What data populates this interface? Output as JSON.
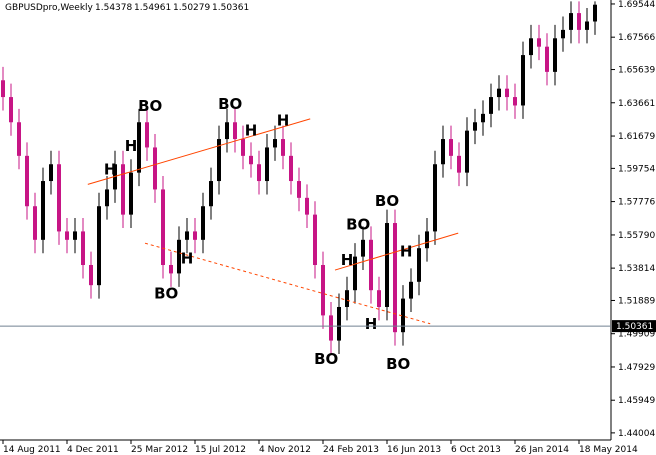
{
  "chart_data": {
    "type": "candlestick",
    "title": "GBPUSDpro,Weekly",
    "header_values": [
      1.54378,
      1.54961,
      1.50279,
      1.50361
    ],
    "categories": [
      "14 Aug 2011",
      null,
      null,
      null,
      null,
      null,
      null,
      null,
      "4 Dec 2011",
      null,
      null,
      null,
      null,
      null,
      null,
      null,
      "25 Mar 2012",
      null,
      null,
      null,
      null,
      null,
      null,
      null,
      "15 Jul 2012",
      null,
      null,
      null,
      null,
      null,
      null,
      null,
      "4 Nov 2012",
      null,
      null,
      null,
      null,
      null,
      null,
      null,
      "24 Feb 2013",
      null,
      null,
      null,
      null,
      null,
      null,
      null,
      "16 Jun 2013",
      null,
      null,
      null,
      null,
      null,
      null,
      null,
      "6 Oct 2013",
      null,
      null,
      null,
      null,
      null,
      null,
      null,
      "26 Jan 2014",
      null,
      null,
      null,
      null,
      null,
      null,
      null,
      "18 May 2014",
      null,
      null
    ],
    "open": [
      1.65,
      1.64,
      1.625,
      1.605,
      1.575,
      1.555,
      1.59,
      1.6,
      1.56,
      1.555,
      1.56,
      1.54,
      1.528,
      1.575,
      1.585,
      1.6,
      1.57,
      1.595,
      1.625,
      1.61,
      1.585,
      1.54,
      1.535,
      1.555,
      1.56,
      1.555,
      1.575,
      1.59,
      1.615,
      1.625,
      1.615,
      1.605,
      1.6,
      1.59,
      1.61,
      1.615,
      1.605,
      1.59,
      1.58,
      1.57,
      1.54,
      1.51,
      1.495,
      1.515,
      1.525,
      1.545,
      1.555,
      1.525,
      1.515,
      1.565,
      1.5,
      1.52,
      1.53,
      1.55,
      1.56,
      1.6,
      1.615,
      1.605,
      1.595,
      1.62,
      1.625,
      1.63,
      1.64,
      1.645,
      1.64,
      1.635,
      1.665,
      1.675,
      1.67,
      1.655,
      1.675,
      1.68,
      1.69,
      1.68,
      1.685
    ],
    "high": [
      1.658,
      1.648,
      1.633,
      1.613,
      1.583,
      1.598,
      1.608,
      1.608,
      1.568,
      1.568,
      1.568,
      1.548,
      1.583,
      1.593,
      1.608,
      1.608,
      1.603,
      1.633,
      1.633,
      1.618,
      1.593,
      1.548,
      1.563,
      1.568,
      1.568,
      1.583,
      1.598,
      1.623,
      1.633,
      1.633,
      1.623,
      1.613,
      1.608,
      1.618,
      1.623,
      1.623,
      1.613,
      1.598,
      1.588,
      1.578,
      1.548,
      1.518,
      1.523,
      1.533,
      1.553,
      1.563,
      1.563,
      1.533,
      1.573,
      1.573,
      1.528,
      1.538,
      1.558,
      1.568,
      1.608,
      1.623,
      1.623,
      1.613,
      1.628,
      1.633,
      1.638,
      1.648,
      1.653,
      1.653,
      1.648,
      1.673,
      1.683,
      1.683,
      1.678,
      1.683,
      1.688,
      1.697,
      1.697,
      1.693,
      1.697
    ],
    "low": [
      1.632,
      1.617,
      1.597,
      1.567,
      1.547,
      1.547,
      1.582,
      1.552,
      1.547,
      1.547,
      1.532,
      1.52,
      1.52,
      1.567,
      1.577,
      1.562,
      1.562,
      1.587,
      1.602,
      1.577,
      1.532,
      1.527,
      1.527,
      1.547,
      1.547,
      1.547,
      1.567,
      1.582,
      1.607,
      1.607,
      1.597,
      1.592,
      1.582,
      1.582,
      1.602,
      1.597,
      1.582,
      1.572,
      1.562,
      1.532,
      1.502,
      1.487,
      1.487,
      1.507,
      1.517,
      1.537,
      1.517,
      1.507,
      1.507,
      1.492,
      1.492,
      1.512,
      1.522,
      1.542,
      1.552,
      1.592,
      1.597,
      1.587,
      1.587,
      1.612,
      1.617,
      1.622,
      1.632,
      1.632,
      1.627,
      1.627,
      1.657,
      1.662,
      1.647,
      1.647,
      1.667,
      1.672,
      1.672,
      1.672,
      1.677
    ],
    "close": [
      1.64,
      1.625,
      1.605,
      1.575,
      1.555,
      1.59,
      1.6,
      1.56,
      1.555,
      1.56,
      1.54,
      1.528,
      1.575,
      1.585,
      1.6,
      1.57,
      1.595,
      1.625,
      1.61,
      1.585,
      1.54,
      1.535,
      1.555,
      1.56,
      1.555,
      1.575,
      1.59,
      1.615,
      1.625,
      1.615,
      1.605,
      1.6,
      1.59,
      1.61,
      1.615,
      1.605,
      1.59,
      1.58,
      1.57,
      1.54,
      1.51,
      1.495,
      1.515,
      1.525,
      1.545,
      1.555,
      1.525,
      1.515,
      1.565,
      1.5,
      1.52,
      1.53,
      1.55,
      1.56,
      1.6,
      1.615,
      1.605,
      1.595,
      1.62,
      1.625,
      1.63,
      1.64,
      1.645,
      1.64,
      1.635,
      1.665,
      1.675,
      1.67,
      1.655,
      1.675,
      1.68,
      1.69,
      1.68,
      1.685,
      1.695
    ],
    "up_color": "#000000",
    "down_color": "#c71585",
    "ylim": [
      1.4358,
      1.6978
    ],
    "yticks": [
      1.69544,
      1.67566,
      1.65639,
      1.63661,
      1.61679,
      1.59754,
      1.57776,
      {
        "value": 1.5579,
        "label": "1.55790"
      },
      1.53814,
      1.51889,
      1.49909,
      1.47929,
      1.45949,
      1.44004
    ],
    "price_line": 1.50361,
    "annotations": [
      {
        "text": "BO",
        "x": 18.4,
        "y": 1.6318
      },
      {
        "text": "H",
        "x": 16,
        "y": 1.608
      },
      {
        "text": "H",
        "x": 13.4,
        "y": 1.594
      },
      {
        "text": "BO",
        "x": 28.4,
        "y": 1.633
      },
      {
        "text": "H",
        "x": 31,
        "y": 1.617
      },
      {
        "text": "H",
        "x": 35,
        "y": 1.623
      },
      {
        "text": "BO",
        "x": 20.4,
        "y": 1.52
      },
      {
        "text": "H",
        "x": 23,
        "y": 1.541
      },
      {
        "text": "BO",
        "x": 40.4,
        "y": 1.481
      },
      {
        "text": "BO",
        "x": 44.4,
        "y": 1.561
      },
      {
        "text": "H",
        "x": 43,
        "y": 1.54
      },
      {
        "text": "BO",
        "x": 48,
        "y": 1.575
      },
      {
        "text": "H",
        "x": 46,
        "y": 1.502
      },
      {
        "text": "H",
        "x": 50.4,
        "y": 1.545
      },
      {
        "text": "BO",
        "x": 49.4,
        "y": 1.478
      }
    ],
    "trendlines": [
      {
        "x": [
          10.6,
          38.4
        ],
        "y": [
          1.588,
          1.627
        ],
        "dashed": false
      },
      {
        "x": [
          17.75,
          53.4
        ],
        "y": [
          1.553,
          1.505
        ],
        "dashed": true
      },
      {
        "x": [
          41.5,
          56.9
        ],
        "y": [
          1.537,
          1.559
        ],
        "dashed": false
      }
    ],
    "trend_color": "#ff4500"
  }
}
